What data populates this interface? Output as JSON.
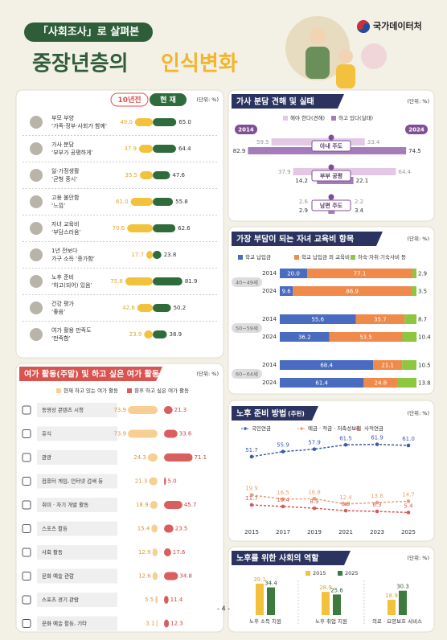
{
  "header": {
    "subtitle": "「사회조사」로 살펴본",
    "title_1": "중장년층의",
    "title_2": "인식변화",
    "org": "국가데이터처",
    "page": "- 4 -"
  },
  "chart_data": [
    {
      "type": "diverging-bar",
      "unit": "(단위: %)",
      "categories": [
        [
          "부모 부양",
          "‘가족·정부·사회가 함께’"
        ],
        [
          "가사 분담",
          "‘부부가 공평하게’"
        ],
        [
          "일·가정생활",
          "‘균형 중시’"
        ],
        [
          "고용 불안함",
          "‘느낌’"
        ],
        [
          "자녀 교육비",
          "‘부담스러움’"
        ],
        [
          "1년 전보다",
          "가구 소득 ‘증가함’"
        ],
        [
          "노후 준비",
          "‘하고(되어) 있음’"
        ],
        [
          "건강 평가",
          "‘좋음’"
        ],
        [
          "여가 활용 만족도",
          "‘만족함’"
        ]
      ],
      "series": [
        {
          "name": "10년전",
          "color": "#f3c23c",
          "values": [
            49.0,
            37.9,
            35.5,
            61.0,
            70.6,
            17.7,
            75.8,
            42.6,
            23.9
          ],
          "value_labels": [
            "49.0",
            "37.9",
            "35.5",
            "61.0",
            "70.6",
            "17.7",
            "75.8",
            "42.6",
            "23.9"
          ]
        },
        {
          "name": "현 재",
          "color": "#2f6b3b",
          "values": [
            65.0,
            64.4,
            47.6,
            55.8,
            62.6,
            23.8,
            81.9,
            50.2,
            38.9
          ],
          "value_labels": [
            "65.0",
            "64.4",
            "47.6",
            "55.8",
            "62.6",
            "23.8",
            "81.9",
            "50.2",
            "38.9"
          ]
        }
      ]
    },
    {
      "type": "butterfly",
      "title": "가사 분담 견해 및 실태",
      "unit": "(단위: %)",
      "periods": [
        "2014",
        "2024"
      ],
      "categories": [
        "아내 주도",
        "부부 공평",
        "남편 주도"
      ],
      "series": [
        {
          "name": "해야 한다(견해)",
          "color": "#e3c8e6",
          "values": [
            [
              59.5,
              33.4
            ],
            [
              37.9,
              64.4
            ],
            [
              2.6,
              2.2
            ]
          ]
        },
        {
          "name": "하고 있다(실태)",
          "color": "#a47cb9",
          "values": [
            [
              82.9,
              74.5
            ],
            [
              14.2,
              22.1
            ],
            [
              2.9,
              3.4
            ]
          ]
        }
      ]
    },
    {
      "type": "stacked-bar",
      "title": "가장 부담이 되는 자녀 교육비 항목",
      "unit": "(단위: %)",
      "groups": [
        "40~49세",
        "50~59세",
        "60~64세"
      ],
      "categories": [
        "2014",
        "2024"
      ],
      "series": [
        {
          "name": "학교 납입금",
          "color": "#4a6cc0",
          "values": [
            [
              20.0,
              9.6
            ],
            [
              55.6,
              36.2
            ],
            [
              68.4,
              61.4
            ]
          ],
          "value_labels": [
            [
              "20.0",
              "9.6"
            ],
            [
              "55.6",
              "36.2"
            ],
            [
              "68.4",
              "61.4"
            ]
          ]
        },
        {
          "name": "학교 납입금 외 교육비",
          "color": "#f08a4b",
          "values": [
            [
              77.1,
              86.9
            ],
            [
              35.7,
              53.5
            ],
            [
              21.1,
              24.8
            ]
          ]
        },
        {
          "name": "하숙·자취·기숙사비 등",
          "color": "#8dc63f",
          "values": [
            [
              2.9,
              3.5
            ],
            [
              8.7,
              10.4
            ],
            [
              10.5,
              13.8
            ]
          ]
        }
      ]
    },
    {
      "type": "paired-bar",
      "title": "여가 활동(주말) 및 하고 싶은 여가 활동",
      "note": "(복수응답, 2025)",
      "unit": "(단위: %)",
      "categories": [
        "동영상 콘텐츠 시청",
        "휴식",
        "관광",
        "컴퓨터 게임, 인터넷 검색 등",
        "취미 · 자기 개발 활동",
        "스포츠 활동",
        "사회 활동",
        "문화 예술 관람",
        "스포츠 경기 관람",
        "문화 예술 활동, 기타"
      ],
      "series": [
        {
          "name": "현재 하고 있는 여가 활동",
          "color": "#f8cf93",
          "values": [
            73.9,
            73.9,
            24.3,
            21.3,
            18.9,
            15.4,
            12.9,
            12.6,
            5.5,
            3.1
          ]
        },
        {
          "name": "향후 하고 싶은 여가 활동",
          "color": "#d95f5f",
          "values": [
            21.3,
            33.6,
            71.1,
            5.0,
            45.7,
            23.5,
            17.6,
            34.8,
            11.4,
            12.3
          ],
          "value_labels": [
            "21.3",
            "33.6",
            "71.1",
            "5.0",
            "45.7",
            "23.5",
            "17.6",
            "34.8",
            "11.4",
            "12.3"
          ]
        }
      ]
    },
    {
      "type": "line",
      "title": "노후 준비 방법",
      "note": "(주된)",
      "unit": "(단위: %)",
      "x": [
        2015,
        2017,
        2019,
        2021,
        2023,
        2025
      ],
      "series": [
        {
          "name": "국민연금",
          "color": "#3b5ca8",
          "values": [
            51.7,
            55.9,
            57.9,
            61.5,
            61.9,
            61.0
          ],
          "value_labels": [
            "51.7",
            "55.9",
            "57.9",
            "61.5",
            "61.9",
            "61.0"
          ]
        },
        {
          "name": "예금 · 적금 · 저축성보험",
          "color": "#ee9f6e",
          "values": [
            19.9,
            16.5,
            16.8,
            12.4,
            13.6,
            14.7
          ]
        },
        {
          "name": "사적연금",
          "color": "#d45a5a",
          "values": [
            11.7,
            10.4,
            8.9,
            6.9,
            6.3,
            5.4
          ]
        }
      ]
    },
    {
      "type": "bar",
      "title": "노후를 위한 사회의 역할",
      "unit": "(단위: %)",
      "categories": [
        "노후 소득 지원",
        "노후 취업 지원",
        "의료 · 요양보호 서비스"
      ],
      "series": [
        {
          "name": "2015",
          "color": "#f3c23c",
          "values": [
            39.1,
            28.9,
            18.9
          ]
        },
        {
          "name": "2025",
          "color": "#3d7a3e",
          "values": [
            34.4,
            25.6,
            30.3
          ]
        }
      ]
    }
  ]
}
